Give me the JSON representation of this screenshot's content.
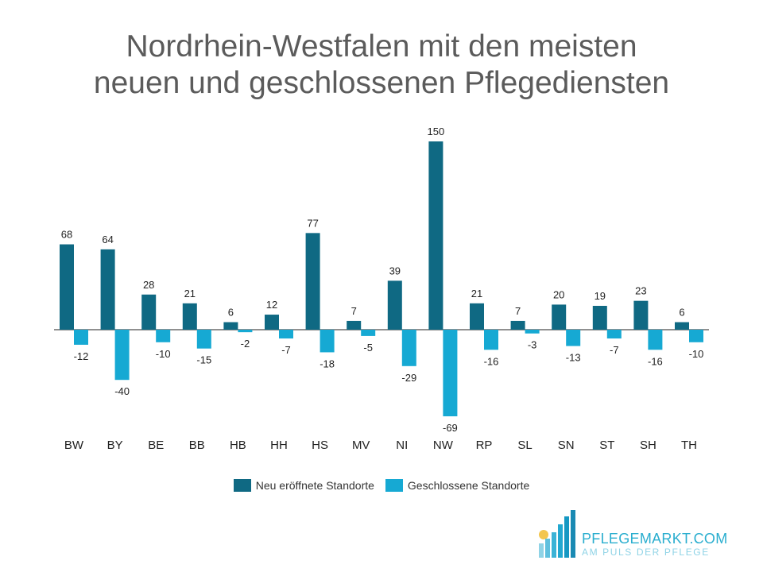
{
  "title": {
    "line1": "Nordrhein-Westfalen mit den meisten",
    "line2": "neuen und geschlossenen Pflegediensten"
  },
  "colors": {
    "opened": "#0f6983",
    "closed": "#16a9d3",
    "axis": "#222222",
    "label": "#222222"
  },
  "legend": {
    "opened_label": "Neu eröffnete Standorte",
    "closed_label": "Geschlossene Standorte",
    "position": "bottom-center"
  },
  "logo": {
    "name": "PFLEGEMARKT.COM",
    "tagline": "AM PULS DER PFLEGE"
  },
  "chart_data": {
    "type": "bar",
    "title": "Nordrhein-Westfalen mit den meisten neuen und geschlossenen Pflegediensten",
    "categories": [
      "BW",
      "BY",
      "BE",
      "BB",
      "HB",
      "HH",
      "HS",
      "MV",
      "NI",
      "NW",
      "RP",
      "SL",
      "SN",
      "ST",
      "SH",
      "TH"
    ],
    "series": [
      {
        "name": "Neu eröffnete Standorte",
        "values": [
          68,
          64,
          28,
          21,
          6,
          12,
          77,
          7,
          39,
          150,
          21,
          7,
          20,
          19,
          23,
          6
        ]
      },
      {
        "name": "Geschlossene Standorte",
        "values": [
          -12,
          -40,
          -10,
          -15,
          -2,
          -7,
          -18,
          -5,
          -29,
          -69,
          -16,
          -3,
          -13,
          -7,
          -16,
          -10
        ]
      }
    ],
    "ylim": [
      -69,
      150
    ],
    "grid": false,
    "data_labels": true
  }
}
